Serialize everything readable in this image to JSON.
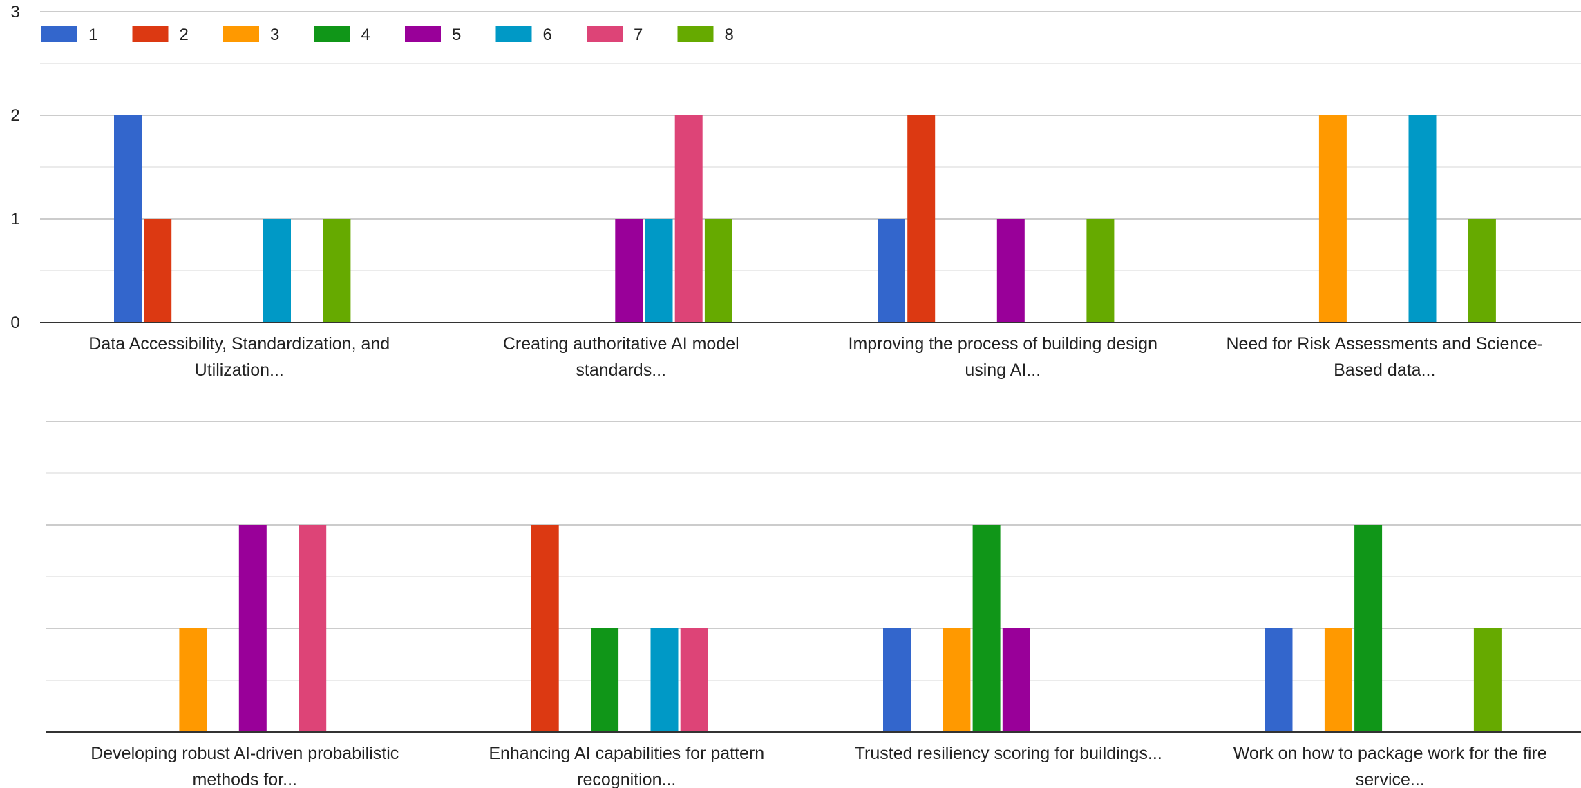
{
  "chart_data": {
    "type": "bar",
    "legend_position": "top-left",
    "grid": true,
    "ylim": [
      0,
      3
    ],
    "yticks": [
      "0",
      "1",
      "2",
      "3"
    ],
    "series": [
      {
        "name": "1",
        "color": "#3366cc"
      },
      {
        "name": "2",
        "color": "#dc3912"
      },
      {
        "name": "3",
        "color": "#ff9900"
      },
      {
        "name": "4",
        "color": "#109618"
      },
      {
        "name": "5",
        "color": "#990099"
      },
      {
        "name": "6",
        "color": "#0099c6"
      },
      {
        "name": "7",
        "color": "#dd4477"
      },
      {
        "name": "8",
        "color": "#66aa00"
      }
    ],
    "categories": [
      {
        "lines": [
          "Data Accessibility, Standardization, and",
          "Utilization..."
        ],
        "values": [
          2,
          1,
          0,
          0,
          0,
          1,
          0,
          1
        ]
      },
      {
        "lines": [
          "Creating authoritative AI model",
          "standards..."
        ],
        "values": [
          0,
          0,
          0,
          0,
          1,
          1,
          2,
          1
        ]
      },
      {
        "lines": [
          "Improving the process of building design",
          "using AI..."
        ],
        "values": [
          1,
          2,
          0,
          0,
          1,
          0,
          0,
          1
        ]
      },
      {
        "lines": [
          "Need for Risk Assessments and Science-",
          "Based data..."
        ],
        "values": [
          0,
          0,
          2,
          0,
          0,
          2,
          0,
          1
        ]
      },
      {
        "lines": [
          "Developing robust AI-driven probabilistic",
          "methods for..."
        ],
        "values": [
          0,
          0,
          1,
          0,
          2,
          0,
          2,
          0
        ]
      },
      {
        "lines": [
          "Enhancing AI capabilities for pattern",
          "recognition..."
        ],
        "values": [
          0,
          2,
          0,
          1,
          0,
          1,
          1,
          0
        ]
      },
      {
        "lines": [
          "Trusted resiliency scoring for buildings..."
        ],
        "values": [
          1,
          0,
          1,
          2,
          1,
          0,
          0,
          0
        ]
      },
      {
        "lines": [
          "Work on how to package work for the fire",
          "service..."
        ],
        "values": [
          1,
          0,
          1,
          2,
          0,
          0,
          0,
          1
        ]
      }
    ]
  }
}
